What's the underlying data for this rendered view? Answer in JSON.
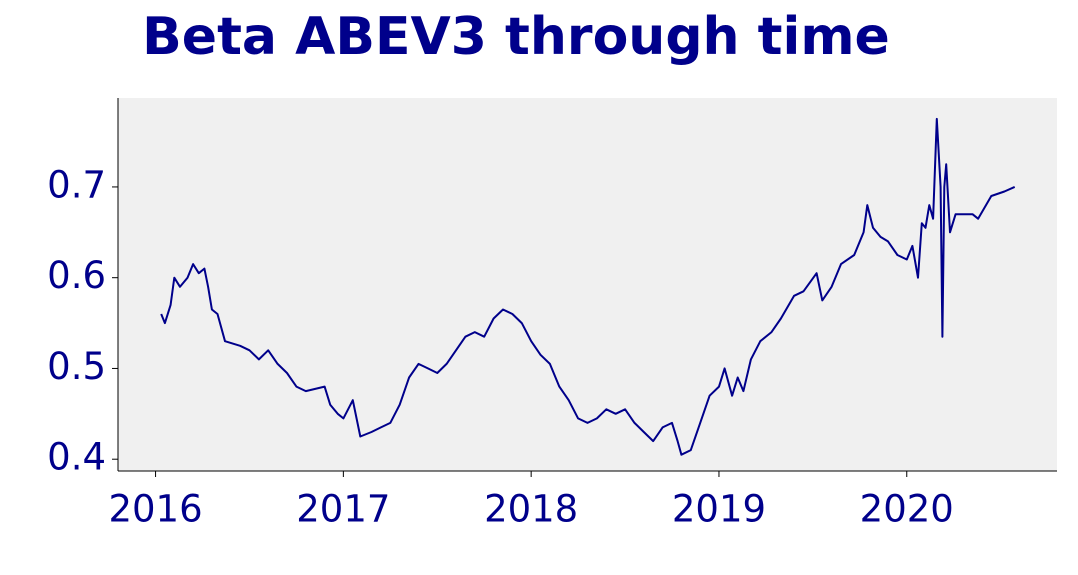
{
  "chart_data": {
    "type": "line",
    "title": "Beta ABEV3 through time",
    "series": [
      {
        "name": "ABEV3",
        "color": "#00008b",
        "x": [
          2016.03,
          2016.05,
          2016.08,
          2016.1,
          2016.13,
          2016.17,
          2016.2,
          2016.23,
          2016.26,
          2016.28,
          2016.3,
          2016.33,
          2016.37,
          2016.45,
          2016.5,
          2016.55,
          2016.6,
          2016.65,
          2016.7,
          2016.75,
          2016.8,
          2016.9,
          2016.93,
          2016.97,
          2017.0,
          2017.05,
          2017.09,
          2017.15,
          2017.2,
          2017.25,
          2017.3,
          2017.35,
          2017.4,
          2017.45,
          2017.5,
          2017.55,
          2017.6,
          2017.65,
          2017.7,
          2017.75,
          2017.8,
          2017.85,
          2017.9,
          2017.95,
          2018.0,
          2018.05,
          2018.1,
          2018.15,
          2018.2,
          2018.25,
          2018.3,
          2018.35,
          2018.4,
          2018.45,
          2018.5,
          2018.55,
          2018.6,
          2018.65,
          2018.7,
          2018.75,
          2018.78,
          2018.8,
          2018.85,
          2018.9,
          2018.95,
          2019.0,
          2019.03,
          2019.07,
          2019.1,
          2019.13,
          2019.17,
          2019.22,
          2019.28,
          2019.33,
          2019.4,
          2019.45,
          2019.52,
          2019.55,
          2019.6,
          2019.65,
          2019.72,
          2019.77,
          2019.79,
          2019.82,
          2019.86,
          2019.9,
          2019.95,
          2020.0,
          2020.03,
          2020.06,
          2020.08,
          2020.1,
          2020.12,
          2020.14,
          2020.16,
          2020.18,
          2020.19,
          2020.2,
          2020.21,
          2020.23,
          2020.26,
          2020.35,
          2020.38,
          2020.45,
          2020.52,
          2020.575
        ],
        "values": [
          0.56,
          0.55,
          0.57,
          0.6,
          0.59,
          0.6,
          0.615,
          0.605,
          0.61,
          0.59,
          0.565,
          0.56,
          0.53,
          0.525,
          0.52,
          0.51,
          0.52,
          0.505,
          0.495,
          0.48,
          0.475,
          0.48,
          0.46,
          0.45,
          0.445,
          0.465,
          0.425,
          0.43,
          0.435,
          0.44,
          0.46,
          0.49,
          0.505,
          0.5,
          0.495,
          0.505,
          0.52,
          0.535,
          0.54,
          0.535,
          0.555,
          0.565,
          0.56,
          0.55,
          0.53,
          0.515,
          0.505,
          0.48,
          0.465,
          0.445,
          0.44,
          0.445,
          0.455,
          0.45,
          0.455,
          0.44,
          0.43,
          0.42,
          0.435,
          0.44,
          0.42,
          0.405,
          0.41,
          0.44,
          0.47,
          0.48,
          0.5,
          0.47,
          0.49,
          0.475,
          0.51,
          0.53,
          0.54,
          0.555,
          0.58,
          0.585,
          0.605,
          0.575,
          0.59,
          0.615,
          0.625,
          0.65,
          0.68,
          0.655,
          0.645,
          0.64,
          0.625,
          0.62,
          0.635,
          0.6,
          0.66,
          0.655,
          0.68,
          0.665,
          0.775,
          0.7,
          0.535,
          0.7,
          0.725,
          0.65,
          0.67,
          0.67,
          0.665,
          0.69,
          0.695,
          0.7
        ]
      }
    ],
    "xlim": [
      2015.8,
      2020.8
    ],
    "xticks": [
      2016,
      2017,
      2018,
      2019,
      2020
    ],
    "ylim": [
      0.387,
      0.798
    ],
    "yticks": [
      0.4,
      0.5,
      0.6,
      0.7
    ]
  }
}
